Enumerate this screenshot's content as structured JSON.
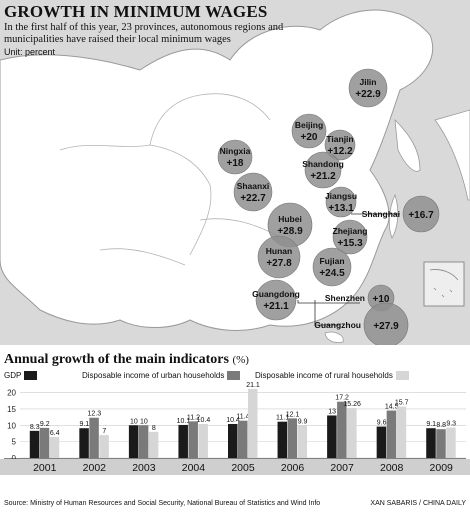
{
  "header": {
    "title": "GROWTH IN MINIMUM WAGES",
    "subtitle": "In the first half of this year, 23 provinces, autonomous regions and municipalities have raised their local minimum wages",
    "unit": "Unit: percent"
  },
  "map": {
    "regions": [
      {
        "name": "Jilin",
        "value": "+22.9"
      },
      {
        "name": "Beijing",
        "value": "+20"
      },
      {
        "name": "Tianjin",
        "value": "+12.2"
      },
      {
        "name": "Ningxia",
        "value": "+18"
      },
      {
        "name": "Shandong",
        "value": "+21.2"
      },
      {
        "name": "Shaanxi",
        "value": "+22.7"
      },
      {
        "name": "Jiangsu",
        "value": "+13.1"
      },
      {
        "name": "Shanghai",
        "value": "+16.7"
      },
      {
        "name": "Hubei",
        "value": "+28.9"
      },
      {
        "name": "Zhejiang",
        "value": "+15.3"
      },
      {
        "name": "Hunan",
        "value": "+27.8"
      },
      {
        "name": "Fujian",
        "value": "+24.5"
      },
      {
        "name": "Guangdong",
        "value": "+21.1"
      },
      {
        "name": "Shenzhen",
        "value": "+10"
      },
      {
        "name": "Guangzhou",
        "value": "+27.9"
      }
    ]
  },
  "section2": {
    "title": "Annual growth of the main indicators",
    "unit": "(%)"
  },
  "chart_data": {
    "type": "bar",
    "title": "Annual growth of the main indicators",
    "categories": [
      "2001",
      "2002",
      "2003",
      "2004",
      "2005",
      "2006",
      "2007",
      "2008",
      "2009"
    ],
    "series": [
      {
        "name": "GDP",
        "color": "#1a1a1a",
        "values": [
          8.3,
          9.1,
          10,
          10.1,
          10.4,
          11.1,
          13,
          9.6,
          9.1
        ]
      },
      {
        "name": "Disposable income of urban households",
        "color": "#7a7a7a",
        "values": [
          9.2,
          12.3,
          10,
          11.2,
          11.4,
          12.1,
          17.2,
          14.5,
          8.8
        ]
      },
      {
        "name": "Disposable income of rural households",
        "color": "#d6d6d6",
        "values": [
          6.4,
          7,
          8,
          10.4,
          21.1,
          9.9,
          15.26,
          15.7,
          9.3
        ]
      }
    ],
    "yticks": [
      0,
      5,
      10,
      15,
      20
    ],
    "ylim": [
      0,
      22
    ],
    "grid": true
  },
  "footer": {
    "source": "Source: Ministry of Human Resources and Social Security, National Bureau of Statistics and Wind Info",
    "credit": "XAN SABARIS / CHINA DAILY"
  }
}
